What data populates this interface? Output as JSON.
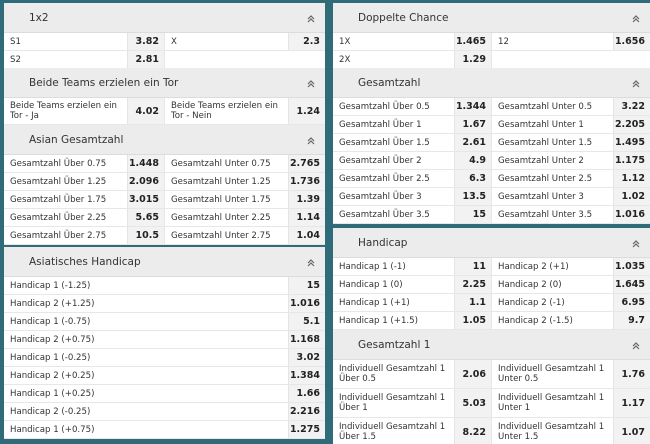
{
  "left": [
    {
      "title": "1x2",
      "rows": [
        [
          [
            "S1",
            "3.82"
          ],
          [
            "X",
            "2.3"
          ]
        ],
        [
          [
            "S2",
            "2.81"
          ]
        ]
      ]
    },
    {
      "title": "Beide Teams erzielen ein Tor",
      "rows": [
        [
          [
            "Beide Teams erzielen ein Tor - Ja",
            "4.02"
          ],
          [
            "Beide Teams erzielen ein Tor - Nein",
            "1.24"
          ]
        ]
      ]
    },
    {
      "title": "Asian Gesamtzahl",
      "rows": [
        [
          [
            "Gesamtzahl Über 0.75",
            "1.448"
          ],
          [
            "Gesamtzahl Unter 0.75",
            "2.765"
          ]
        ],
        [
          [
            "Gesamtzahl Über 1.25",
            "2.096"
          ],
          [
            "Gesamtzahl Unter 1.25",
            "1.736"
          ]
        ],
        [
          [
            "Gesamtzahl Über 1.75",
            "3.015"
          ],
          [
            "Gesamtzahl Unter 1.75",
            "1.39"
          ]
        ],
        [
          [
            "Gesamtzahl Über 2.25",
            "5.65"
          ],
          [
            "Gesamtzahl Unter 2.25",
            "1.14"
          ]
        ],
        [
          [
            "Gesamtzahl Über 2.75",
            "10.5"
          ],
          [
            "Gesamtzahl Unter 2.75",
            "1.04"
          ]
        ]
      ]
    },
    {
      "title": "Asiatisches Handicap",
      "rows": [
        [
          [
            "Handicap 1 (-1.25)",
            "15"
          ]
        ],
        [
          [
            "Handicap 2 (+1.25)",
            "1.016"
          ]
        ],
        [
          [
            "Handicap 1 (-0.75)",
            "5.1"
          ]
        ],
        [
          [
            "Handicap 2 (+0.75)",
            "1.168"
          ]
        ],
        [
          [
            "Handicap 1 (-0.25)",
            "3.02"
          ]
        ],
        [
          [
            "Handicap 2 (+0.25)",
            "1.384"
          ]
        ],
        [
          [
            "Handicap 1 (+0.25)",
            "1.66"
          ]
        ],
        [
          [
            "Handicap 2 (-0.25)",
            "2.216"
          ]
        ],
        [
          [
            "Handicap 1 (+0.75)",
            "1.275"
          ]
        ]
      ]
    }
  ],
  "right": [
    {
      "title": "Doppelte Chance",
      "rows": [
        [
          [
            "1X",
            "1.465"
          ],
          [
            "12",
            "1.656"
          ]
        ],
        [
          [
            "2X",
            "1.29"
          ]
        ]
      ]
    },
    {
      "title": "Gesamtzahl",
      "rows": [
        [
          [
            "Gesamtzahl Über 0.5",
            "1.344"
          ],
          [
            "Gesamtzahl Unter 0.5",
            "3.22"
          ]
        ],
        [
          [
            "Gesamtzahl Über 1",
            "1.67"
          ],
          [
            "Gesamtzahl Unter 1",
            "2.205"
          ]
        ],
        [
          [
            "Gesamtzahl Über 1.5",
            "2.61"
          ],
          [
            "Gesamtzahl Unter 1.5",
            "1.495"
          ]
        ],
        [
          [
            "Gesamtzahl Über 2",
            "4.9"
          ],
          [
            "Gesamtzahl Unter 2",
            "1.175"
          ]
        ],
        [
          [
            "Gesamtzahl Über 2.5",
            "6.3"
          ],
          [
            "Gesamtzahl Unter 2.5",
            "1.12"
          ]
        ],
        [
          [
            "Gesamtzahl Über 3",
            "13.5"
          ],
          [
            "Gesamtzahl Unter 3",
            "1.02"
          ]
        ],
        [
          [
            "Gesamtzahl Über 3.5",
            "15"
          ],
          [
            "Gesamtzahl Unter 3.5",
            "1.016"
          ]
        ]
      ]
    },
    {
      "title": "Handicap",
      "rows": [
        [
          [
            "Handicap 1 (-1)",
            "11"
          ],
          [
            "Handicap 2 (+1)",
            "1.035"
          ]
        ],
        [
          [
            "Handicap 1 (0)",
            "2.25"
          ],
          [
            "Handicap 2 (0)",
            "1.645"
          ]
        ],
        [
          [
            "Handicap 1 (+1)",
            "1.1"
          ],
          [
            "Handicap 2 (-1)",
            "6.95"
          ]
        ],
        [
          [
            "Handicap 1 (+1.5)",
            "1.05"
          ],
          [
            "Handicap 2 (-1.5)",
            "9.7"
          ]
        ]
      ]
    },
    {
      "title": "Gesamtzahl 1",
      "rows": [
        [
          [
            "Individuell Gesamtzahl 1 Über 0.5",
            "2.06"
          ],
          [
            "Individuell Gesamtzahl 1 Unter 0.5",
            "1.76"
          ]
        ],
        [
          [
            "Individuell Gesamtzahl 1 Über 1",
            "5.03"
          ],
          [
            "Individuell Gesamtzahl 1 Unter 1",
            "1.17"
          ]
        ],
        [
          [
            "Individuell Gesamtzahl 1 Über 1.5",
            "8.22"
          ],
          [
            "Individuell Gesamtzahl 1 Unter 1.5",
            "1.07"
          ]
        ]
      ]
    }
  ],
  "icons": {
    "collapse": "chevron-up-icon"
  },
  "colors": {
    "background": "#2f6b78",
    "header": "#ececec",
    "odds_cell": "#f2f2f2"
  }
}
